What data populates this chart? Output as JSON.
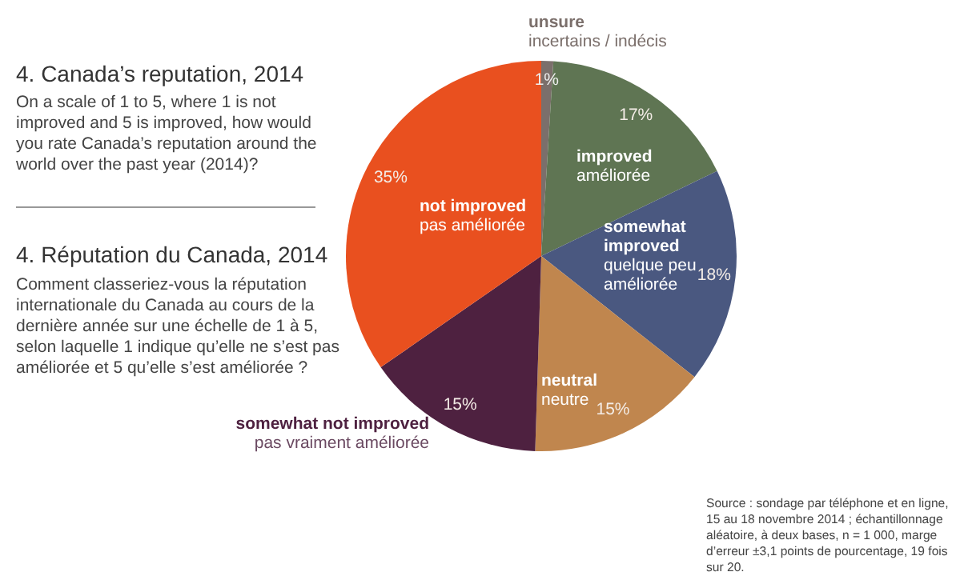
{
  "chart_data": {
    "type": "pie",
    "title": "4. Canada’s reputation, 2014",
    "subtitle": "On a scale of 1 to 5, where 1 is not improved and 5 is improved, how would you rate Canada’s reputation around the world over the past year (2014)?",
    "annotations": [
      "4. Réputation du Canada, 2014",
      "Comment classeriez-vous la réputation internationale du Canada au cours de la dernière année sur une échelle de 1 à 5, selon laquelle 1 indique qu’elle ne s’est pas améliorée et 5 qu’elle s’est améliorée ?",
      "Source : sondage par téléphone et en ligne, 15 au 18 novembre 2014 ; échantillonnage aléatoire, à deux bases, n = 1 000, marge d’erreur ±3,1 points de pourcentage, 19 fois sur 20."
    ],
    "categories": [
      "unsure\nincertains / indécis",
      "improved\naméliorée",
      "somewhat improved\nquelque peu améliorée",
      "neutral\nneutre",
      "somewhat not improved\npas vraiment améliorée",
      "not improved\npas améliorée"
    ],
    "values": [
      1,
      17,
      18,
      15,
      15,
      35
    ],
    "value_labels": [
      "1%",
      "17%",
      "18%",
      "15%",
      "15%",
      "35%"
    ],
    "colors": [
      "#7b6f6b",
      "#5f7553",
      "#4a5880",
      "#c0864e",
      "#4e2140",
      "#e9501f"
    ],
    "legend": false
  }
}
